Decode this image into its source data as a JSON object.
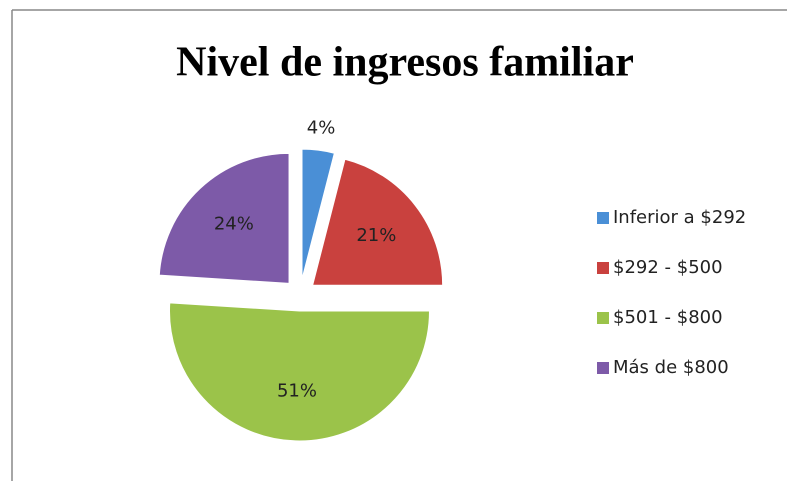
{
  "chart_data": {
    "type": "pie",
    "title": "Nivel de ingresos familiar",
    "categories": [
      "Inferior a $292",
      "$292 - $500",
      "$501 - $800",
      "Más de $800"
    ],
    "values": [
      4,
      21,
      51,
      24
    ],
    "value_labels": [
      "4%",
      "21%",
      "51%",
      "24%"
    ],
    "colors": [
      "#4a8fd6",
      "#c9413e",
      "#9bc34a",
      "#7d5aa8"
    ],
    "legend": "right"
  }
}
